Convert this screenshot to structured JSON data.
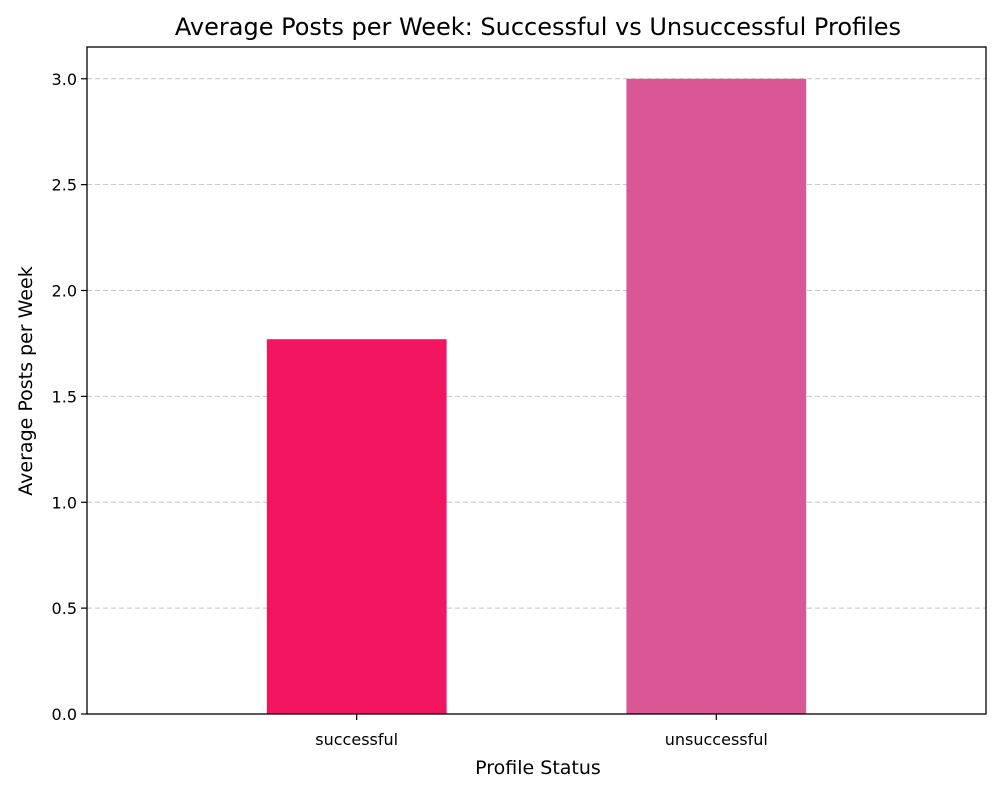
{
  "chart_data": {
    "type": "bar",
    "title": "Average Posts per Week: Successful vs Unsuccessful Profiles",
    "xlabel": "Profile Status",
    "ylabel": "Average Posts per Week",
    "categories": [
      "successful",
      "unsuccessful"
    ],
    "values": [
      1.77,
      3.0
    ],
    "colors": [
      "#f21361",
      "#da5795"
    ],
    "ylim": [
      0,
      3.15
    ],
    "yticks": [
      "0.0",
      "0.5",
      "1.0",
      "1.5",
      "2.0",
      "2.5",
      "3.0"
    ],
    "grid": "y-dashed",
    "legend": "none"
  }
}
